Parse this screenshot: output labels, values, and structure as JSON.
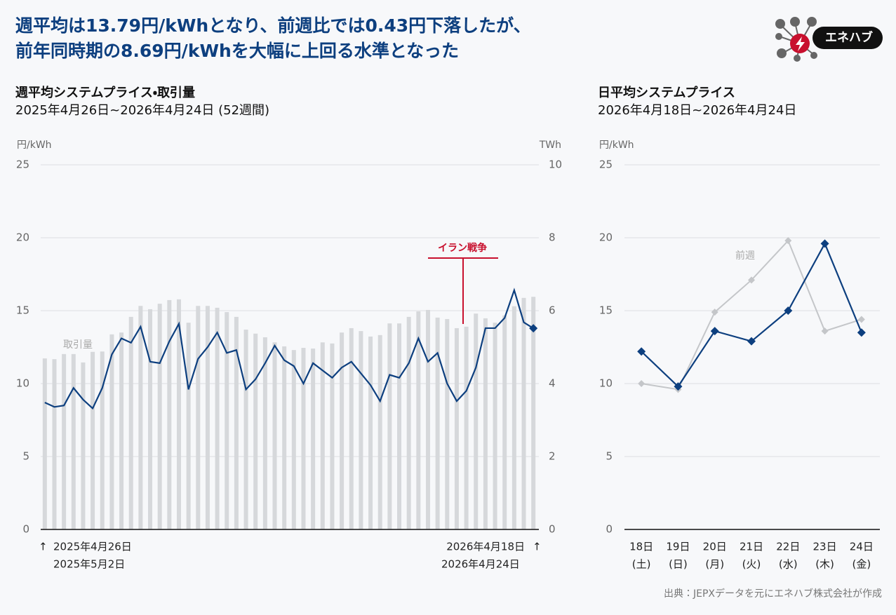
{
  "title_lines": [
    "週平均は13.79円/kWhとなり、前週比では0.43円下落したが、",
    "前年同時期の8.69円/kWhを大幅に上回る水準となった"
  ],
  "logo": "エネハブ",
  "source": "出典：JEPXデータを元にエネハブ株式会社が作成",
  "chart_data": [
    {
      "type": "combo",
      "title": "週平均システムプライス・取引量",
      "subtitle": "2025年4月26日~2026年4月24日 (52週間)",
      "y_label": "円/kWh",
      "y2_label": "TWh",
      "categories": [
        null,
        null,
        null,
        null,
        null,
        null,
        null,
        null,
        null,
        null,
        null,
        null,
        null,
        null,
        null,
        null,
        null,
        null,
        null,
        null,
        null,
        null,
        null,
        null,
        null,
        null,
        null,
        null,
        null,
        null,
        null,
        null,
        null,
        null,
        null,
        null,
        null,
        null,
        null,
        null,
        null,
        null,
        null,
        null,
        null,
        null,
        null,
        null,
        null,
        null,
        null,
        null
      ],
      "ylim": [
        0,
        25
      ],
      "yticks": [
        0,
        5,
        10,
        15,
        20,
        25
      ],
      "y2lim": [
        0,
        10
      ],
      "y2ticks": [
        0,
        2,
        4,
        6,
        8,
        10
      ],
      "grid": true,
      "series": [
        {
          "name": "取引量",
          "type": "bar",
          "axis": "y2",
          "color": "#d6d8db",
          "values": [
            4.69,
            4.67,
            4.81,
            4.81,
            4.58,
            4.87,
            4.88,
            5.35,
            5.4,
            5.83,
            6.13,
            6.04,
            6.19,
            6.29,
            6.31,
            5.67,
            6.13,
            6.13,
            6.08,
            5.96,
            5.83,
            5.48,
            5.37,
            5.27,
            5.13,
            5.02,
            4.92,
            4.98,
            4.96,
            5.13,
            5.1,
            5.4,
            5.52,
            5.44,
            5.29,
            5.33,
            5.65,
            5.65,
            5.83,
            5.98,
            6.02,
            5.81,
            5.77,
            5.52,
            5.56,
            5.92,
            5.79,
            5.67,
            5.87,
            6.12,
            6.35,
            6.38
          ]
        },
        {
          "type": "line",
          "color": "#0d3f7f",
          "values": [
            8.7,
            8.4,
            8.5,
            9.7,
            8.9,
            8.3,
            9.7,
            12.0,
            13.1,
            12.8,
            13.9,
            11.5,
            11.4,
            12.9,
            14.1,
            9.6,
            11.7,
            12.5,
            13.5,
            12.1,
            12.3,
            9.6,
            10.3,
            11.4,
            12.6,
            11.6,
            11.2,
            10.0,
            11.4,
            10.9,
            10.4,
            11.1,
            11.5,
            10.7,
            9.9,
            8.8,
            10.6,
            10.4,
            11.4,
            13.1,
            11.5,
            12.1,
            10.0,
            8.8,
            9.5,
            11.1,
            13.8,
            13.8,
            14.5,
            16.4,
            14.2,
            13.79
          ]
        }
      ],
      "event": "イラン戦争",
      "period_start": {
        "arrow": "↑",
        "week_start": "2025年4月26日",
        "week_end": "2025年5月2日"
      },
      "period_end": {
        "arrow": "↑",
        "week_start": "2026年4月18日",
        "week_end": "2026年4月24日"
      }
    },
    {
      "type": "line",
      "title": "日平均システムプライス",
      "subtitle": "2026年4月18日~2026年4月24日",
      "y_label": "円/kWh",
      "categories": [
        "18日",
        "19日",
        "20日",
        "21日",
        "22日",
        "23日",
        "24日"
      ],
      "weekdays": [
        "(土)",
        "(日)",
        "(月)",
        "(火)",
        "(水)",
        "(木)",
        "(金)"
      ],
      "ylim": [
        0,
        25
      ],
      "yticks": [
        0,
        5,
        10,
        15,
        20,
        25
      ],
      "grid": true,
      "series": [
        {
          "name": "前週",
          "color": "#c4c6c9",
          "values": [
            10.0,
            9.6,
            14.9,
            17.1,
            19.8,
            13.6,
            14.4
          ]
        },
        {
          "color": "#0d3f7f",
          "values": [
            12.2,
            9.8,
            13.6,
            12.9,
            15.0,
            19.6,
            13.5
          ]
        }
      ]
    }
  ]
}
